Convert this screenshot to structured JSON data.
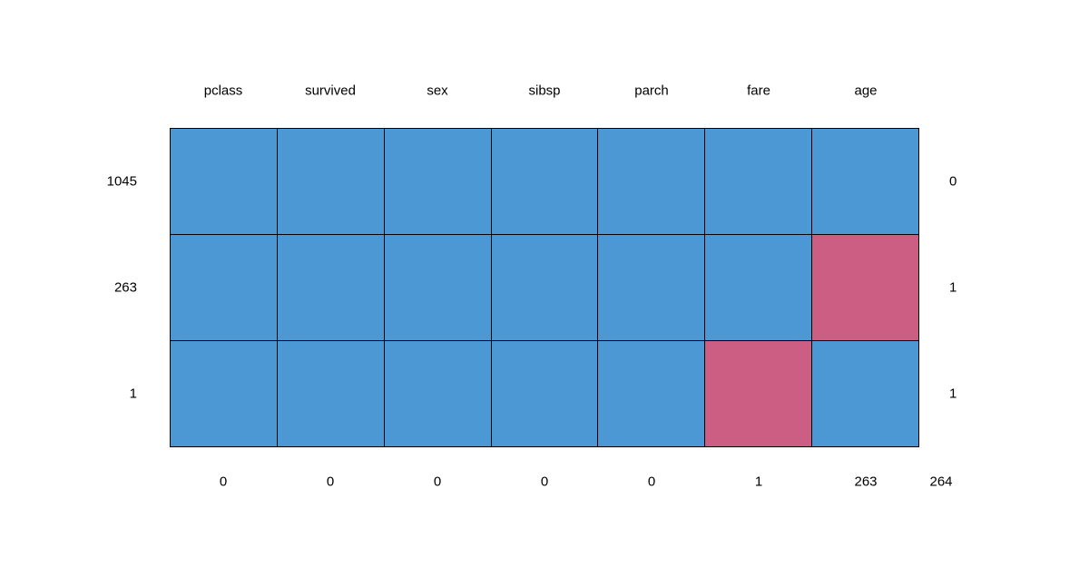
{
  "chart_data": {
    "type": "heatmap",
    "subtype": "missing-data-pattern",
    "columns": [
      "pclass",
      "survived",
      "sex",
      "sibsp",
      "parch",
      "fare",
      "age"
    ],
    "rows": [
      {
        "count": 1045,
        "pattern": [
          1,
          1,
          1,
          1,
          1,
          1,
          1
        ],
        "n_missing": 0
      },
      {
        "count": 263,
        "pattern": [
          1,
          1,
          1,
          1,
          1,
          1,
          0
        ],
        "n_missing": 1
      },
      {
        "count": 1,
        "pattern": [
          1,
          1,
          1,
          1,
          1,
          0,
          1
        ],
        "n_missing": 1
      }
    ],
    "column_missing_counts": [
      0,
      0,
      0,
      0,
      0,
      1,
      263
    ],
    "total_missing": 264,
    "cell_meaning": {
      "1": "observed",
      "0": "missing"
    },
    "colors": {
      "observed": "#4C98D4",
      "missing": "#CC5E84",
      "grid_line": "#000000",
      "background": "#FFFFFF",
      "text": "#000000"
    }
  }
}
